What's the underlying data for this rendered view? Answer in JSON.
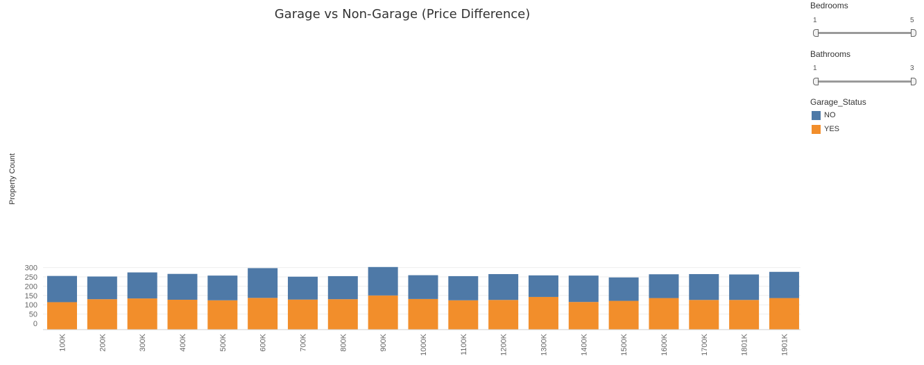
{
  "chart_data": {
    "type": "bar",
    "stacked": true,
    "title": "Garage vs Non-Garage (Price Difference)",
    "ylabel": "Property Count",
    "xlabel": "",
    "ylim": [
      0,
      320
    ],
    "yticks": [
      0,
      50,
      100,
      150,
      200,
      250,
      300
    ],
    "grid": true,
    "categories": [
      "100K",
      "200K",
      "300K",
      "400K",
      "500K",
      "600K",
      "700K",
      "800K",
      "900K",
      "1000K",
      "1100K",
      "1200K",
      "1300K",
      "1400K",
      "1500K",
      "1600K",
      "1700K",
      "1801K",
      "1901K"
    ],
    "series": [
      {
        "name": "YES",
        "color": "#f28e2b",
        "values": [
          114,
          130,
          134,
          127,
          124,
          137,
          128,
          130,
          150,
          131,
          124,
          126,
          142,
          115,
          121,
          136,
          126,
          126,
          136
        ]
      },
      {
        "name": "NO",
        "color": "#4e79a7",
        "values": [
          141,
          122,
          140,
          139,
          133,
          160,
          123,
          124,
          153,
          128,
          130,
          139,
          116,
          142,
          126,
          128,
          139,
          137,
          141
        ]
      }
    ],
    "legend": {
      "title": "Garage_Status",
      "position": "right",
      "order": [
        "NO",
        "YES"
      ]
    }
  },
  "filters": [
    {
      "title": "Bedrooms",
      "min": "1",
      "max": "5",
      "selected_min": 1,
      "selected_max": 5
    },
    {
      "title": "Bathrooms",
      "min": "1",
      "max": "3",
      "selected_min": 1,
      "selected_max": 3
    }
  ],
  "legend_items": [
    {
      "label": "NO",
      "color": "#4e79a7"
    },
    {
      "label": "YES",
      "color": "#f28e2b"
    }
  ],
  "legend_title": "Garage_Status",
  "colors": {
    "no": "#4e79a7",
    "yes": "#f28e2b",
    "grid": "#eeeeee",
    "axis_text": "#666666"
  }
}
